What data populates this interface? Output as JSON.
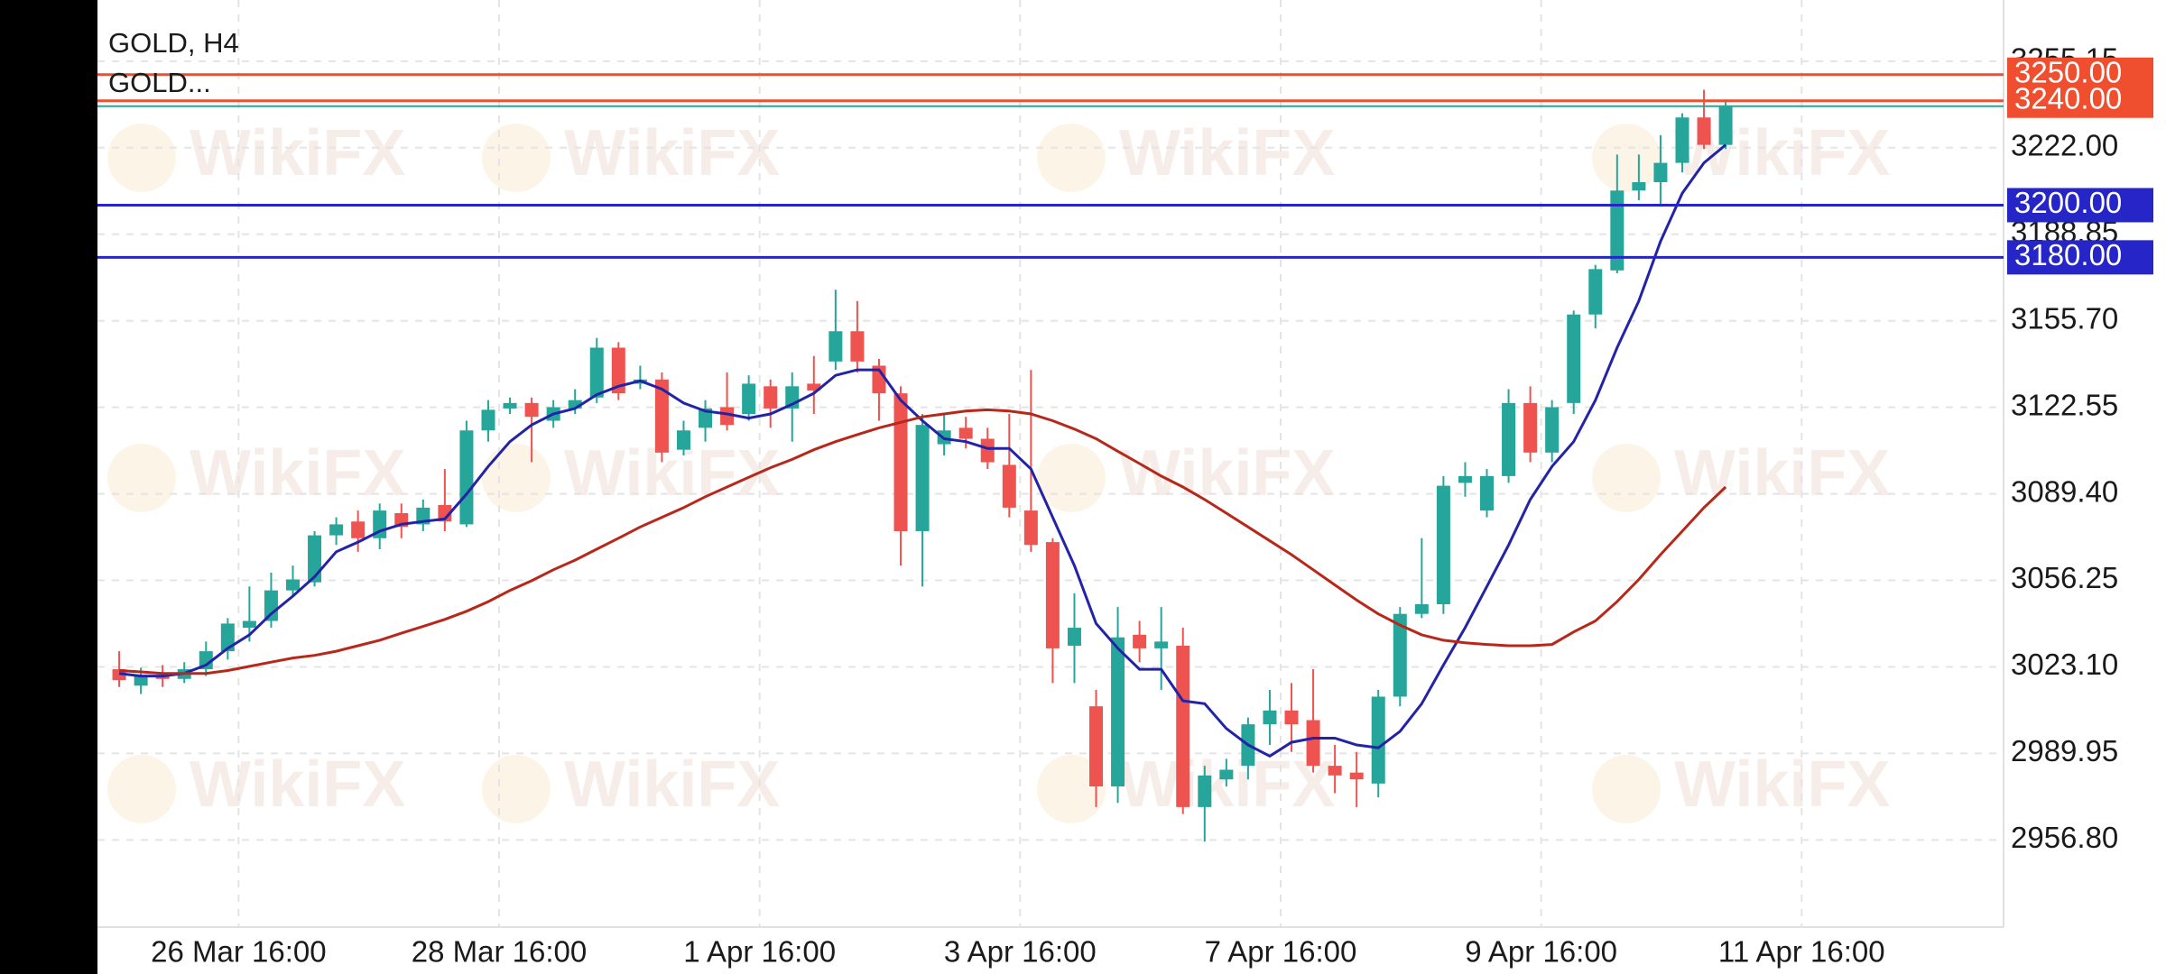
{
  "chart_data": {
    "type": "candlestick",
    "title": "GOLD, H4",
    "subtitle": "GOLD...",
    "watermark": "WikiFX",
    "up_color": "#26a69a",
    "down_color": "#ef5350",
    "open": [
      3022.2,
      3015.9,
      3019.6,
      3018.5,
      3022.2,
      3029.1,
      3038.1,
      3040.7,
      3052.4,
      3055.5,
      3073.5,
      3078.8,
      3072.4,
      3082.0,
      3077.7,
      3085.1,
      3077.7,
      3113.7,
      3122.1,
      3124.2,
      3117.4,
      3122.1,
      3126.3,
      3145.4,
      3131.6,
      3133.2,
      3106.3,
      3114.7,
      3122.6,
      3120.0,
      3130.6,
      3122.1,
      3131.6,
      3140.1,
      3151.7,
      3138.5,
      3127.9,
      3075.1,
      3108.4,
      3114.7,
      3110.5,
      3100.5,
      3083.0,
      3070.9,
      3031.2,
      3008.0,
      2977.3,
      3035.4,
      3030.2,
      3031.2,
      2969.4,
      2980.0,
      2985.2,
      3001.1,
      3006.4,
      3002.7,
      2985.2,
      2982.6,
      2978.4,
      3011.7,
      3043.4,
      3047.1,
      3093.6,
      3083.0,
      3096.2,
      3124.2,
      3105.2,
      3124.2,
      3158.1,
      3175.0,
      3205.6,
      3208.8,
      3216.2,
      3233.6,
      3223.1
    ],
    "high": [
      3029.1,
      3022.8,
      3023.8,
      3024.9,
      3032.8,
      3041.8,
      3053.9,
      3059.2,
      3061.9,
      3075.1,
      3080.4,
      3083.0,
      3085.7,
      3085.7,
      3087.2,
      3098.9,
      3117.4,
      3125.3,
      3126.3,
      3126.3,
      3125.3,
      3129.5,
      3149.1,
      3147.5,
      3138.5,
      3135.9,
      3117.4,
      3125.3,
      3135.9,
      3134.8,
      3133.2,
      3135.9,
      3142.2,
      3167.6,
      3163.3,
      3141.1,
      3130.6,
      3120.0,
      3120.0,
      3118.9,
      3114.7,
      3120.0,
      3136.9,
      3072.4,
      3051.3,
      3014.3,
      3046.0,
      3040.7,
      3046.0,
      3038.1,
      2985.2,
      2987.9,
      3003.7,
      3014.3,
      3016.9,
      3022.2,
      2993.2,
      2990.5,
      3014.3,
      3046.0,
      3072.4,
      3096.2,
      3101.5,
      3098.9,
      3129.5,
      3130.6,
      3125.3,
      3159.6,
      3177.1,
      3219.4,
      3219.4,
      3226.8,
      3235.2,
      3244.2,
      3240.5
    ],
    "low": [
      3015.4,
      3012.7,
      3015.4,
      3016.9,
      3019.6,
      3025.9,
      3032.8,
      3038.1,
      3050.2,
      3053.9,
      3069.8,
      3067.2,
      3068.2,
      3072.4,
      3075.1,
      3075.1,
      3076.7,
      3109.4,
      3120.0,
      3101.5,
      3114.7,
      3120.0,
      3124.2,
      3125.3,
      3129.5,
      3101.5,
      3104.1,
      3109.4,
      3113.7,
      3117.4,
      3114.7,
      3109.4,
      3120.0,
      3136.9,
      3135.9,
      3117.4,
      3061.9,
      3053.9,
      3104.1,
      3106.8,
      3098.9,
      3080.4,
      3067.2,
      3016.9,
      3016.9,
      2969.4,
      2971.0,
      3024.9,
      3014.3,
      2966.7,
      2956.2,
      2977.3,
      2980.0,
      2993.2,
      2990.5,
      2982.6,
      2974.7,
      2969.4,
      2973.1,
      3008.0,
      3041.8,
      3043.4,
      3088.3,
      3080.4,
      3093.6,
      3101.5,
      3101.5,
      3120.0,
      3152.8,
      3173.9,
      3201.9,
      3200.3,
      3212.5,
      3221.5,
      3221.5
    ],
    "close": [
      3018.0,
      3019.6,
      3018.5,
      3022.2,
      3029.1,
      3039.7,
      3040.7,
      3052.4,
      3056.6,
      3073.5,
      3077.7,
      3072.4,
      3083.0,
      3076.7,
      3084.1,
      3078.8,
      3113.7,
      3121.6,
      3124.2,
      3118.9,
      3122.6,
      3125.3,
      3145.4,
      3127.9,
      3133.2,
      3105.2,
      3113.7,
      3122.1,
      3115.8,
      3131.6,
      3122.1,
      3130.6,
      3129.0,
      3151.7,
      3140.1,
      3127.9,
      3075.1,
      3115.8,
      3113.7,
      3110.5,
      3101.5,
      3084.1,
      3069.8,
      3030.2,
      3038.1,
      2977.3,
      3034.4,
      3030.2,
      3032.8,
      2969.4,
      2981.5,
      2983.7,
      3001.1,
      3006.4,
      3001.1,
      2985.2,
      2981.5,
      2980.0,
      3011.7,
      3043.4,
      3047.1,
      3092.5,
      3096.2,
      3096.2,
      3124.2,
      3105.2,
      3122.6,
      3158.1,
      3175.5,
      3205.6,
      3208.8,
      3216.2,
      3233.6,
      3223.1,
      3237.9
    ],
    "lines": [
      {
        "color": "#2323a8",
        "values": [
          3020.6,
          3019.6,
          3019.6,
          3020.6,
          3023.8,
          3030.2,
          3035.4,
          3043.4,
          3050.2,
          3057.6,
          3067.2,
          3070.9,
          3075.1,
          3077.7,
          3078.8,
          3079.8,
          3089.3,
          3099.9,
          3109.4,
          3115.8,
          3120.0,
          3122.1,
          3127.4,
          3130.6,
          3132.7,
          3129.5,
          3124.2,
          3121.1,
          3120.0,
          3118.4,
          3120.0,
          3123.7,
          3127.9,
          3134.8,
          3136.9,
          3136.9,
          3125.3,
          3117.4,
          3110.5,
          3109.4,
          3106.8,
          3106.8,
          3098.9,
          3080.4,
          3061.9,
          3039.7,
          3030.2,
          3022.2,
          3022.2,
          3010.1,
          3009.0,
          2999.5,
          2993.2,
          2988.9,
          2994.2,
          2995.8,
          2995.8,
          2993.2,
          2992.1,
          2998.4,
          3009.0,
          3023.8,
          3038.1,
          3053.9,
          3069.8,
          3087.2,
          3099.9,
          3109.4,
          3125.3,
          3145.4,
          3163.3,
          3186.1,
          3204.6,
          3216.2,
          3223.1
        ]
      },
      {
        "color": "#b8281a",
        "values": [
          3021.7,
          3021.2,
          3020.6,
          3020.6,
          3020.6,
          3021.7,
          3023.3,
          3024.9,
          3026.5,
          3027.5,
          3029.1,
          3031.2,
          3033.3,
          3036.0,
          3038.6,
          3041.3,
          3044.4,
          3048.1,
          3052.4,
          3056.1,
          3060.3,
          3064.0,
          3068.2,
          3072.4,
          3076.7,
          3080.4,
          3084.1,
          3088.3,
          3092.0,
          3095.7,
          3099.4,
          3102.6,
          3106.3,
          3109.4,
          3112.1,
          3114.7,
          3116.8,
          3118.9,
          3120.0,
          3121.1,
          3121.6,
          3121.1,
          3120.0,
          3117.4,
          3114.2,
          3110.5,
          3105.7,
          3101.0,
          3096.2,
          3092.0,
          3087.2,
          3082.0,
          3076.7,
          3071.4,
          3066.1,
          3060.3,
          3054.5,
          3048.7,
          3043.4,
          3039.1,
          3035.4,
          3033.3,
          3032.3,
          3031.7,
          3031.2,
          3031.2,
          3031.7,
          3036.5,
          3040.7,
          3048.1,
          3056.6,
          3066.1,
          3075.1,
          3084.1,
          3092.0
        ]
      }
    ],
    "last_price_color": "#26a69a",
    "levels": [
      {
        "value": 3250,
        "label": "3250.00",
        "color": "#ef4e2f"
      },
      {
        "value": 3240,
        "label": "3240.00",
        "color": "#ef4e2f"
      },
      {
        "value": 3200,
        "label": "3200.00",
        "color": "#2626c8"
      },
      {
        "value": 3180,
        "label": "3180.00",
        "color": "#2626c8"
      }
    ],
    "xlim": [
      -1,
      86.8
    ],
    "xticks": [
      {
        "value": 5.5,
        "label": "26 Mar 16:00"
      },
      {
        "value": 17.5,
        "label": "28 Mar 16:00"
      },
      {
        "value": 29.5,
        "label": "1 Apr 16:00"
      },
      {
        "value": 41.5,
        "label": "3 Apr 16:00"
      },
      {
        "value": 53.5,
        "label": "7 Apr 16:00"
      },
      {
        "value": 65.5,
        "label": "9 Apr 16:00"
      },
      {
        "value": 77.5,
        "label": "11 Apr 16:00"
      }
    ],
    "ylim": [
      2923.4,
      3278.6
    ],
    "yticks": [
      {
        "value": 2956.8,
        "label": "2956.80"
      },
      2989.95,
      {
        "value": 3023.1,
        "label": "3023.10"
      },
      3056.25,
      {
        "value": 3089.4,
        "label": "3089.40"
      },
      3122.55,
      {
        "value": 3155.7,
        "label": "3155.70"
      },
      3188.85,
      {
        "value": 3222,
        "label": "3222.00"
      },
      3255.15
    ],
    "grid": true
  }
}
